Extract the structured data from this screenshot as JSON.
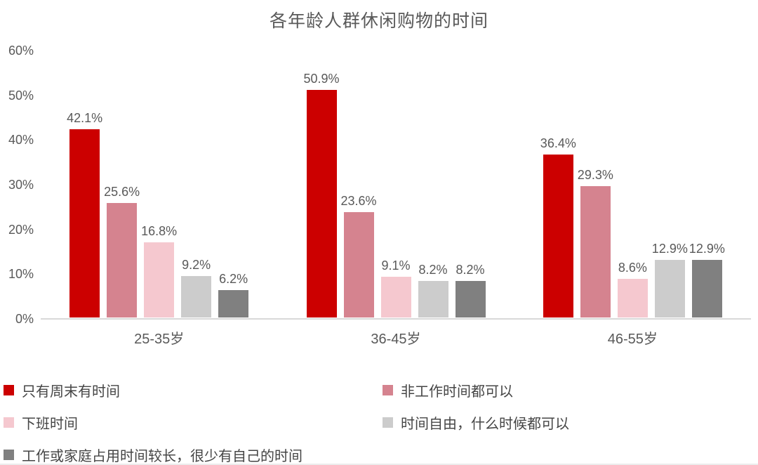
{
  "page": {
    "background": "#ffffff"
  },
  "chart_data": {
    "type": "bar",
    "title": "各年龄人群休闲购物的时间",
    "categories": [
      "25-35岁",
      "36-45岁",
      "46-55岁"
    ],
    "series": [
      {
        "name": "只有周末有时间",
        "color": "#cc0000",
        "values": [
          42.1,
          50.9,
          36.4
        ]
      },
      {
        "name": "非工作时间都可以",
        "color": "#d5838f",
        "values": [
          25.6,
          23.6,
          29.3
        ]
      },
      {
        "name": "下班时间",
        "color": "#f5c8cf",
        "values": [
          16.8,
          9.1,
          8.6
        ]
      },
      {
        "name": "时间自由，什么时候都可以",
        "color": "#cccccc",
        "values": [
          9.2,
          8.2,
          12.9
        ]
      },
      {
        "name": "工作或家庭占用时间较长，很少有自己的时间",
        "color": "#808080",
        "values": [
          6.2,
          8.2,
          12.9
        ]
      }
    ],
    "data_label_suffix": "%",
    "y_axis": {
      "min": 0,
      "max": 60,
      "step": 10,
      "tick_labels": [
        "0%",
        "10%",
        "20%",
        "30%",
        "40%",
        "50%",
        "60%"
      ]
    },
    "grid": false,
    "legend": {
      "position": "bottom",
      "columns": [
        [
          0,
          2,
          4
        ],
        [
          1,
          3
        ]
      ]
    },
    "colors": {
      "title_text": "#595959",
      "axis_text": "#595959",
      "data_label_text": "#595959",
      "legend_text": "#454545",
      "axis_line": "#d9d9d9"
    }
  }
}
